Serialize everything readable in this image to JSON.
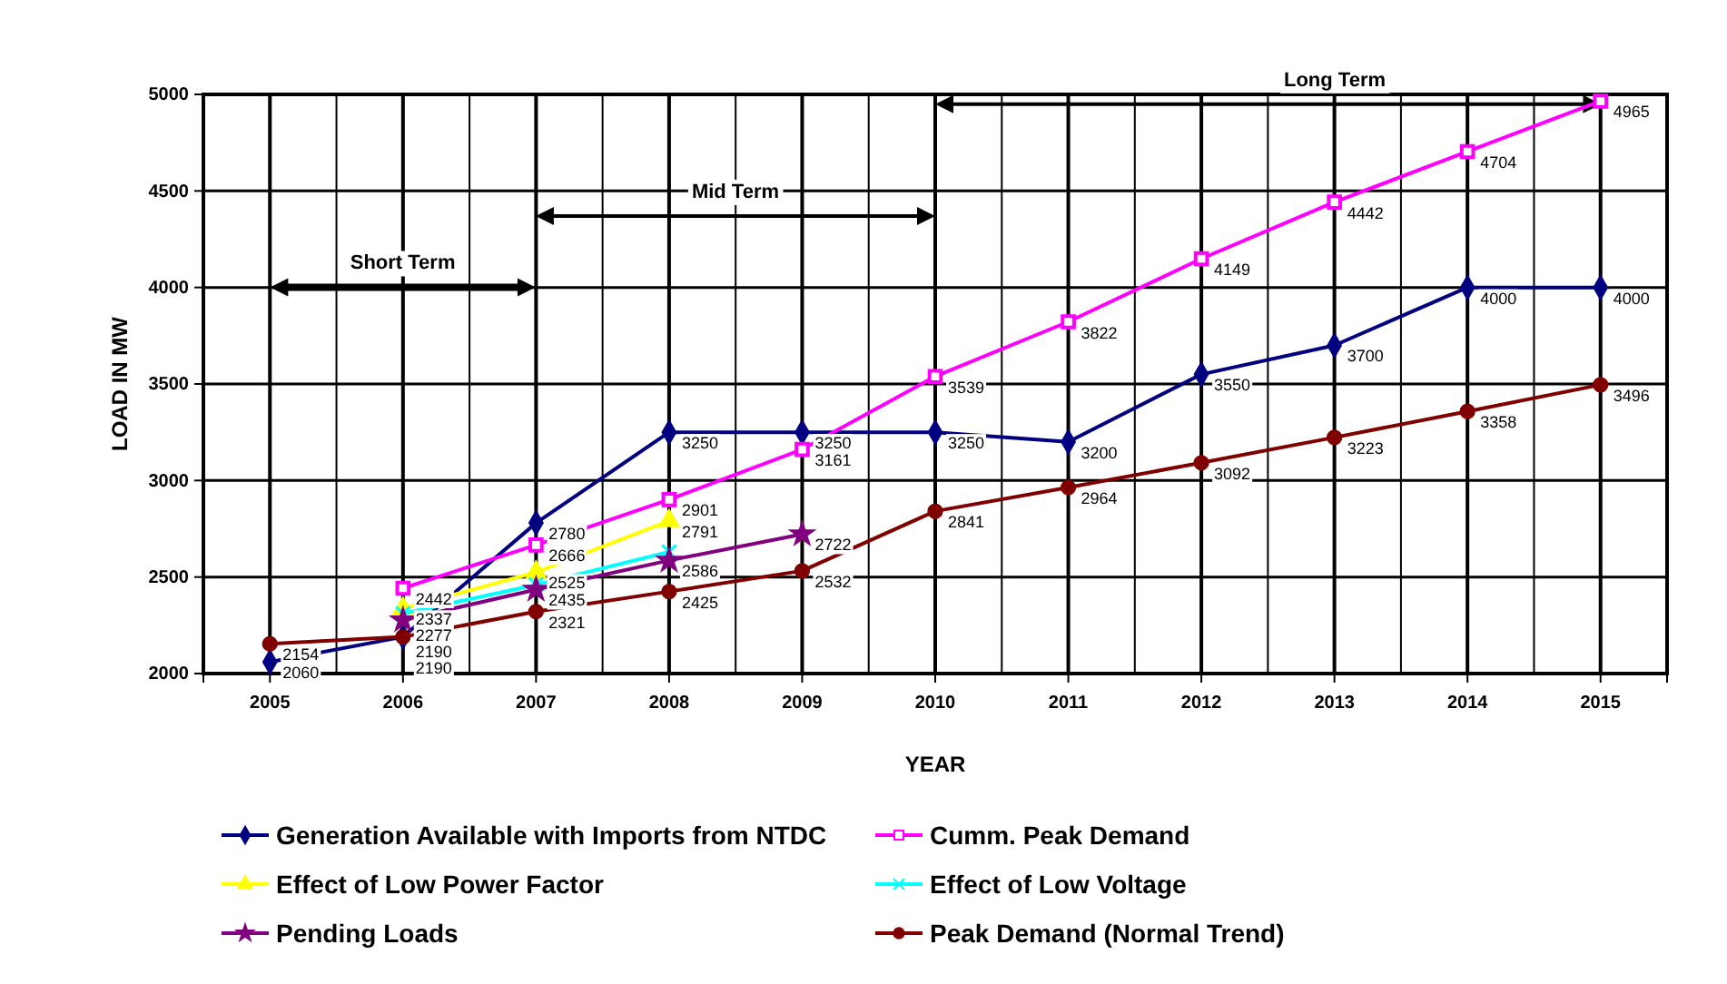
{
  "chart_data": {
    "type": "line",
    "xlabel": "YEAR",
    "ylabel": "LOAD IN MW",
    "categories": [
      "2005",
      "2006",
      "2007",
      "2008",
      "2009",
      "2010",
      "2011",
      "2012",
      "2013",
      "2014",
      "2015"
    ],
    "ylim": [
      2000,
      5000
    ],
    "yticks": [
      2000,
      2500,
      3000,
      3500,
      4000,
      4500,
      5000
    ],
    "grid": true,
    "legend": "bottom",
    "series": [
      {
        "name": "Generation Available with Imports from NTDC",
        "color": "#000080",
        "marker": "diamond",
        "values": [
          2060,
          2190,
          2780,
          3250,
          3250,
          3250,
          3200,
          3550,
          3700,
          4000,
          4000
        ],
        "value_labels": [
          "2060",
          "2190",
          "2780",
          "3250",
          "3250",
          "3250",
          "3200",
          "3550",
          "3700",
          "4000",
          "4000"
        ]
      },
      {
        "name": "Cumm. Peak Demand",
        "color": "#ff00ff",
        "marker": "square",
        "values": [
          null,
          2442,
          2666,
          2901,
          3161,
          3539,
          3822,
          4149,
          4442,
          4704,
          4965
        ],
        "value_labels": [
          null,
          "2442",
          "2666",
          "2901",
          "3161",
          "3539",
          "3822",
          "4149",
          "4442",
          "4704",
          "4965"
        ]
      },
      {
        "name": "Effect of Low Power Factor",
        "color": "#ffff00",
        "marker": "triangle",
        "values": [
          null,
          2337,
          2525,
          2791,
          null,
          null,
          null,
          null,
          null,
          null,
          null
        ],
        "value_labels": [
          null,
          "2337",
          "2525",
          "2791",
          null,
          null,
          null,
          null,
          null,
          null,
          null
        ]
      },
      {
        "name": "Effect of Low Voltage",
        "color": "#00ffff",
        "marker": "cross",
        "values": [
          null,
          2310,
          2460,
          2630,
          null,
          null,
          null,
          null,
          null,
          null,
          null
        ],
        "value_labels": [
          null,
          null,
          null,
          null,
          null,
          null,
          null,
          null,
          null,
          null,
          null
        ]
      },
      {
        "name": "Pending Loads",
        "color": "#800080",
        "marker": "star",
        "values": [
          null,
          2277,
          2435,
          2586,
          2722,
          null,
          null,
          null,
          null,
          null,
          null
        ],
        "value_labels": [
          null,
          "2277",
          "2435",
          "2586",
          "2722",
          null,
          null,
          null,
          null,
          null,
          null
        ]
      },
      {
        "name": "Peak Demand (Normal Trend)",
        "color": "#800000",
        "marker": "circle",
        "values": [
          2154,
          2190,
          2321,
          2425,
          2532,
          2841,
          2964,
          3092,
          3223,
          3358,
          3496
        ],
        "value_labels": [
          "2154",
          "2190",
          "2321",
          "2425",
          "2532",
          "2841",
          "2964",
          "3092",
          "3223",
          "3358",
          "3496"
        ]
      }
    ],
    "annotations": [
      "Short Term",
      "Mid Term",
      "Long Term"
    ]
  }
}
